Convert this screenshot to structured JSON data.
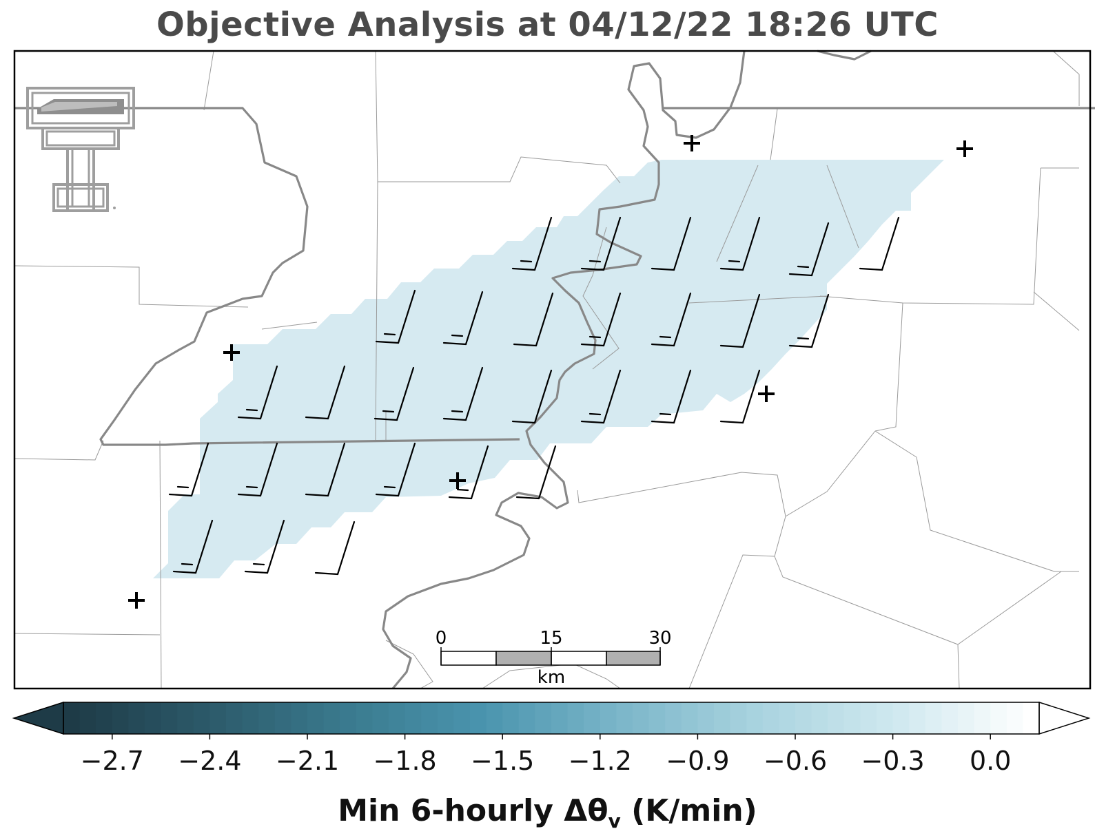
{
  "title": "Objective Analysis at 04/12/22 18:26 UTC",
  "colorbar": {
    "label_main": "Min 6-hourly Δθ",
    "label_sub": "v",
    "label_unit": " (K/min)",
    "ticks": [
      "−2.7",
      "−2.4",
      "−2.1",
      "−1.8",
      "−1.5",
      "−1.2",
      "−0.9",
      "−0.6",
      "−0.3",
      "0.0"
    ],
    "colormap": [
      "#1e3b47",
      "#2c5a6a",
      "#3a7a8e",
      "#4a94ae",
      "#7bb6c9",
      "#a9d3df",
      "#cfe8ef",
      "#ffffff"
    ]
  },
  "scale_bar": {
    "labels": [
      "0",
      "15",
      "30"
    ],
    "unit": "km"
  },
  "colors": {
    "shading": "#d6eaf1",
    "river": "#888888",
    "county": "#9a9a9a",
    "title": "#4a4a4a",
    "logo": "#9e9e9e"
  },
  "logo": "texas-tech-double-t-logo"
}
